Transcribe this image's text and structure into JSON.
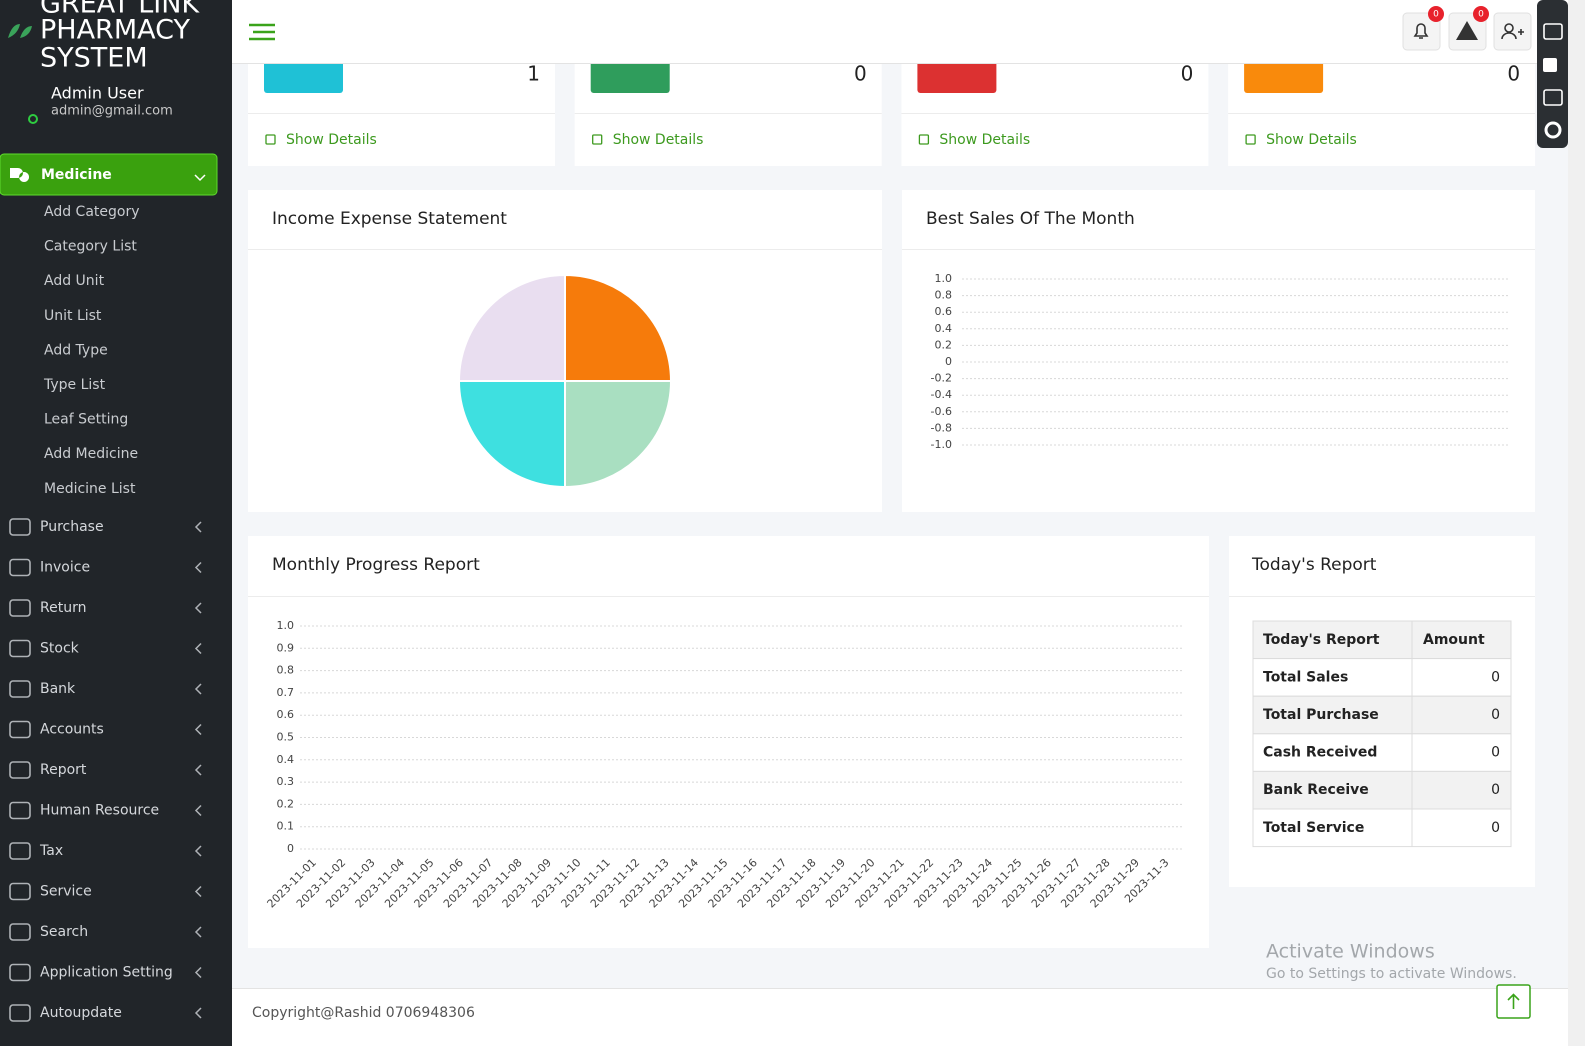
{
  "sidebar": {
    "brand": [
      "GREAT LINK",
      "PHARMACY",
      "SYSTEM"
    ],
    "user": {
      "name": "Admin User",
      "email": "admin@gmail.com"
    },
    "active_menu": {
      "label": "Medicine",
      "items": [
        "Add Category",
        "Category List",
        "Add Unit",
        "Unit List",
        "Add Type",
        "Type List",
        "Leaf Setting",
        "Add Medicine",
        "Medicine List"
      ]
    },
    "menu": [
      "Purchase",
      "Invoice",
      "Return",
      "Stock",
      "Bank",
      "Accounts",
      "Report",
      "Human Resource",
      "Tax",
      "Service",
      "Search",
      "Application Setting",
      "Autoupdate"
    ]
  },
  "topbar": {
    "badges": [
      "0",
      "0"
    ]
  },
  "cards": [
    {
      "value": "1",
      "link": "Show Details",
      "color": "#1fc1d6"
    },
    {
      "value": "0",
      "link": "Show Details",
      "color": "#2f9d5c"
    },
    {
      "value": "0",
      "link": "Show Details",
      "color": "#dc3131"
    },
    {
      "value": "0",
      "link": "Show Details",
      "color": "#f98a0c"
    }
  ],
  "chart_data": [
    {
      "type": "pie",
      "title": "Income Expense Statement",
      "values": [
        25,
        25,
        25,
        25
      ],
      "colors": [
        "#f67b0b",
        "#a9dfc1",
        "#3ee0e0",
        "#e9def0"
      ]
    },
    {
      "type": "line",
      "title": "Best Sales Of The Month",
      "ylim": [
        -1,
        1
      ],
      "grid": true,
      "yticks": [
        {
          "value": 1,
          "label": "1.0"
        },
        0.8,
        0.6,
        0.4,
        0.2,
        0,
        -0.2,
        -0.4,
        -0.6,
        -0.8,
        {
          "value": -1,
          "label": "-1.0"
        }
      ]
    },
    {
      "type": "line",
      "title": "Monthly Progress Report",
      "ylim": [
        0,
        1
      ],
      "grid": true,
      "yticks": [
        0,
        0.1,
        0.2,
        0.3,
        0.4,
        0.5,
        0.6,
        0.7,
        0.8,
        0.9,
        {
          "value": 1,
          "label": "1.0"
        }
      ],
      "categories": [
        "2023-11-01",
        "2023-11-02",
        "2023-11-03",
        "2023-11-04",
        "2023-11-05",
        "2023-11-06",
        "2023-11-07",
        "2023-11-08",
        "2023-11-09",
        "2023-11-10",
        "2023-11-11",
        "2023-11-12",
        "2023-11-13",
        "2023-11-14",
        "2023-11-15",
        "2023-11-16",
        "2023-11-17",
        "2023-11-18",
        "2023-11-19",
        "2023-11-20",
        "2023-11-21",
        "2023-11-22",
        "2023-11-23",
        "2023-11-24",
        "2023-11-25",
        "2023-11-26",
        "2023-11-27",
        "2023-11-28",
        "2023-11-29",
        "2023-11-3"
      ]
    }
  ],
  "today_report": {
    "title": "Today's Report",
    "header": [
      "Today's Report",
      "Amount"
    ],
    "rows": [
      [
        "Total Sales",
        "0"
      ],
      [
        "Total Purchase",
        "0"
      ],
      [
        "Cash Received",
        "0"
      ],
      [
        "Bank Receive",
        "0"
      ],
      [
        "Total Service",
        "0"
      ]
    ]
  },
  "watermark": {
    "title": "Activate Windows",
    "text": "Go to Settings to activate Windows."
  },
  "footer": "Copyright@Rashid 0706948306"
}
